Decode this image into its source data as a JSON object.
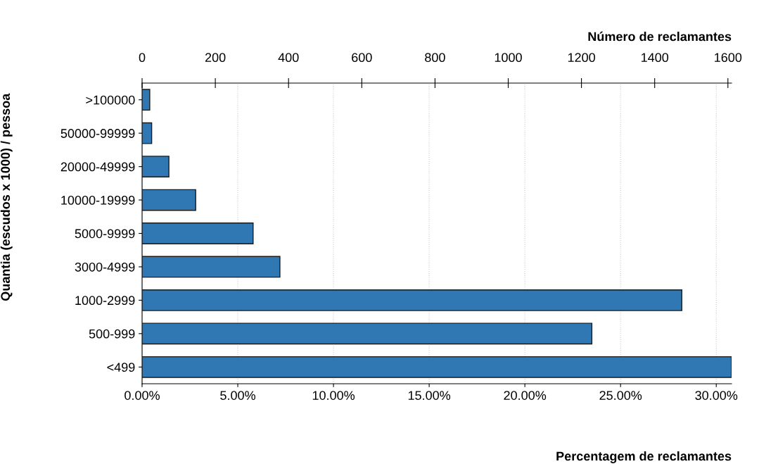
{
  "chart_data": {
    "type": "bar",
    "orientation": "horizontal",
    "categories": [
      ">100000",
      "50000-99999",
      "20000-49999",
      "10000-19999",
      "5000-9999",
      "3000-4999",
      "1000-2999",
      "500-999",
      "<499"
    ],
    "values": [
      0.4,
      0.5,
      1.4,
      2.8,
      5.8,
      7.2,
      28.2,
      23.5,
      30.8
    ],
    "color": "#2f78b4",
    "xlabel": "Percentagem de reclamantes",
    "x2label": "Número de reclamantes",
    "ylabel": "Quantia (escudos x 1000) / pessoa",
    "xlim": [
      0,
      30.8
    ],
    "xticks": [
      {
        "value": 0,
        "label": "0.00%"
      },
      {
        "value": 5,
        "label": "5.00%"
      },
      {
        "value": 10,
        "label": "10.00%"
      },
      {
        "value": 15,
        "label": "15.00%"
      },
      {
        "value": 20,
        "label": "20.00%"
      },
      {
        "value": 25,
        "label": "25.00%"
      },
      {
        "value": 30,
        "label": "30.00%"
      }
    ],
    "x2lim": [
      0,
      1610
    ],
    "x2ticks": [
      0,
      200,
      400,
      600,
      800,
      1000,
      1200,
      1400,
      1600
    ],
    "grid": "x"
  }
}
